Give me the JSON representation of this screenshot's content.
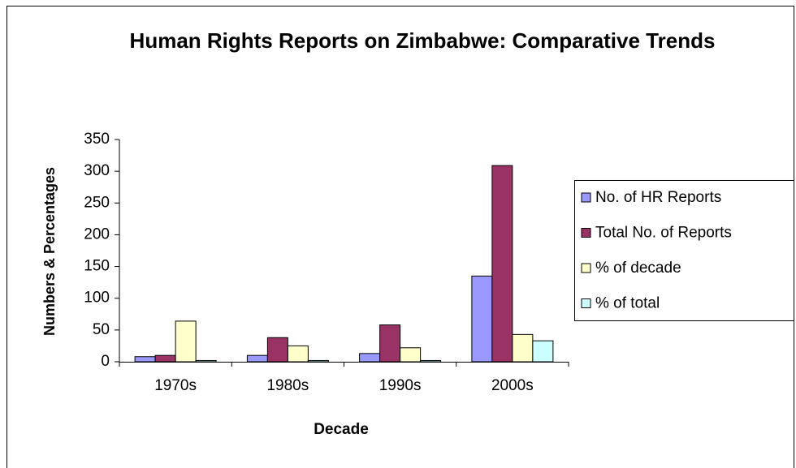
{
  "chart_data": {
    "type": "bar",
    "title": "Human Rights Reports on Zimbabwe: Comparative Trends",
    "x_label": "Decade",
    "y_label": "Numbers & Percentages",
    "categories": [
      "1970s",
      "1980s",
      "1990s",
      "2000s"
    ],
    "series": [
      {
        "name": "No. of HR Reports",
        "color": "#9999ff",
        "values": [
          8,
          10,
          13,
          135
        ]
      },
      {
        "name": "Total No. of Reports",
        "color": "#993366",
        "values": [
          10,
          38,
          58,
          309
        ]
      },
      {
        "name": "% of decade",
        "color": "#ffffcc",
        "values": [
          64,
          25,
          22,
          43
        ]
      },
      {
        "name": "% of total",
        "color": "#ccffff",
        "values": [
          2,
          2,
          2,
          33
        ]
      }
    ],
    "ylim": [
      0,
      350
    ],
    "yticks": [
      0,
      50,
      100,
      150,
      200,
      250,
      300,
      350
    ],
    "grid": false,
    "legend": "right"
  }
}
